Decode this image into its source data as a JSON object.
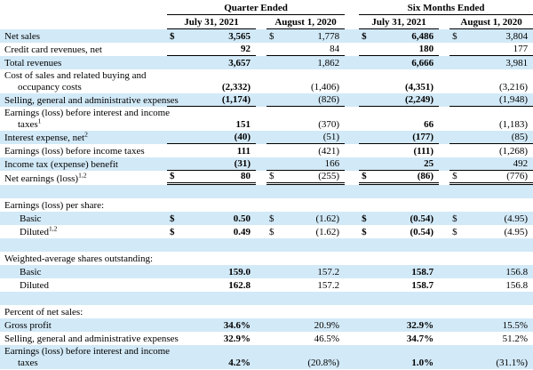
{
  "colors": {
    "row_highlight": "#d2e9f7",
    "row_plain": "#ffffff",
    "line": "#000000",
    "text": "#000000"
  },
  "header": {
    "groups": [
      {
        "label": "Quarter Ended",
        "columns": [
          "July 31, 2021",
          "August 1, 2020"
        ]
      },
      {
        "label": "Six Months Ended",
        "columns": [
          "July 31, 2021",
          "August 1, 2020"
        ]
      }
    ]
  },
  "rows": [
    {
      "label_lines": [
        "Net sales"
      ],
      "dollar": true,
      "values": [
        "3,565",
        "1,778",
        "6,486",
        "3,804"
      ]
    },
    {
      "label_lines": [
        "Credit card revenues, net"
      ],
      "values": [
        "92",
        "84",
        "180",
        "177"
      ],
      "underline": "single"
    },
    {
      "label_lines": [
        "Total revenues"
      ],
      "values": [
        "3,657",
        "1,862",
        "6,666",
        "3,981"
      ]
    },
    {
      "label_lines": [
        "Cost of sales and related buying and",
        "occupancy costs"
      ],
      "values": [
        "(2,332)",
        "(1,406)",
        "(4,351)",
        "(3,216)"
      ]
    },
    {
      "label_lines": [
        "Selling, general and administrative expenses"
      ],
      "values": [
        "(1,174)",
        "(826)",
        "(2,249)",
        "(1,948)"
      ],
      "underline": "single"
    },
    {
      "label_lines": [
        "Earnings (loss) before interest and income",
        "taxes"
      ],
      "sup": "1",
      "values": [
        "151",
        "(370)",
        "66",
        "(1,183)"
      ]
    },
    {
      "label_lines": [
        "Interest expense, net"
      ],
      "sup": "2",
      "values": [
        "(40)",
        "(51)",
        "(177)",
        "(85)"
      ],
      "underline": "single"
    },
    {
      "label_lines": [
        "Earnings (loss) before income taxes"
      ],
      "values": [
        "111",
        "(421)",
        "(111)",
        "(1,268)"
      ]
    },
    {
      "label_lines": [
        "Income tax (expense) benefit"
      ],
      "values": [
        "(31)",
        "166",
        "25",
        "492"
      ],
      "underline": "single"
    },
    {
      "label_lines": [
        "Net earnings (loss)"
      ],
      "sup": "1,2",
      "dollar": true,
      "values": [
        "80",
        "(255)",
        "(86)",
        "(776)"
      ],
      "underline": "double"
    },
    {
      "blank": true
    },
    {
      "label_lines": [
        "Earnings (loss) per share:"
      ],
      "section": true
    },
    {
      "label_lines": [
        "Basic"
      ],
      "indent": true,
      "dollar": true,
      "values": [
        "0.50",
        "(1.62)",
        "(0.54)",
        "(4.95)"
      ]
    },
    {
      "label_lines": [
        "Diluted"
      ],
      "sup": "1,2",
      "indent": true,
      "dollar": true,
      "values": [
        "0.49",
        "(1.62)",
        "(0.54)",
        "(4.95)"
      ]
    },
    {
      "blank": true
    },
    {
      "label_lines": [
        "Weighted-average shares outstanding:"
      ],
      "section": true
    },
    {
      "label_lines": [
        "Basic"
      ],
      "indent": true,
      "values": [
        "159.0",
        "157.2",
        "158.7",
        "156.8"
      ]
    },
    {
      "label_lines": [
        "Diluted"
      ],
      "indent": true,
      "values": [
        "162.8",
        "157.2",
        "158.7",
        "156.8"
      ]
    },
    {
      "blank": true
    },
    {
      "label_lines": [
        "Percent of net sales:"
      ],
      "section": true
    },
    {
      "label_lines": [
        "Gross profit"
      ],
      "values": [
        "34.6%",
        "20.9%",
        "32.9%",
        "15.5%"
      ]
    },
    {
      "label_lines": [
        "Selling, general and administrative expenses"
      ],
      "values": [
        "32.9%",
        "46.5%",
        "34.7%",
        "51.2%"
      ]
    },
    {
      "label_lines": [
        "Earnings (loss) before interest and income",
        "taxes"
      ],
      "values": [
        "4.2%",
        "(20.8%)",
        "1.0%",
        "(31.1%)"
      ]
    }
  ]
}
